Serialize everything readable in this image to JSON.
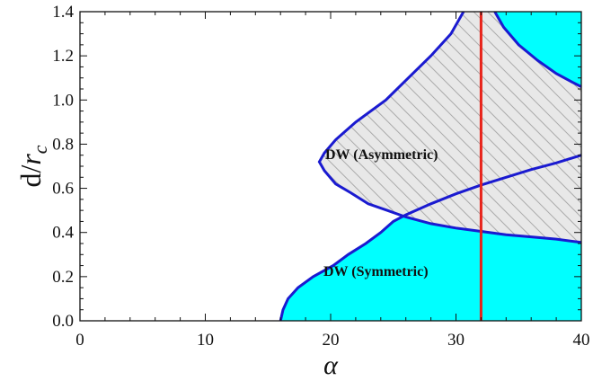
{
  "chart_data": {
    "type": "area",
    "xlim": [
      0,
      40
    ],
    "ylim": [
      0,
      1.4
    ],
    "x_ticks": [
      "0",
      "10",
      "20",
      "30",
      "40"
    ],
    "y_ticks": [
      "0.0",
      "0.2",
      "0.4",
      "0.6",
      "0.8",
      "1.0",
      "1.2",
      "1.4"
    ],
    "xlabel": "α",
    "ylabel_main": "d/",
    "ylabel_var": "r",
    "ylabel_sub": "c",
    "grid": false,
    "colors": {
      "fill": "#00ffff",
      "boundary": "#1a1ad0",
      "hatch": "#aaaaaa",
      "hatch_bg": "#e8e8e8",
      "vertical_line": "#e8231a"
    },
    "regions": [
      {
        "label": "DW (Symmetric)",
        "fill": "cyan",
        "boundary": [
          [
            16.0,
            0.0
          ],
          [
            16.2,
            0.05
          ],
          [
            16.6,
            0.1
          ],
          [
            17.4,
            0.15
          ],
          [
            18.6,
            0.2
          ],
          [
            20.2,
            0.25
          ],
          [
            21.4,
            0.3
          ],
          [
            22.8,
            0.35
          ],
          [
            24.0,
            0.4
          ],
          [
            25.0,
            0.45
          ],
          [
            26.0,
            0.48
          ],
          [
            28.0,
            0.53
          ],
          [
            30.0,
            0.575
          ],
          [
            32.0,
            0.615
          ],
          [
            34.0,
            0.65
          ],
          [
            36.0,
            0.685
          ],
          [
            38.0,
            0.715
          ],
          [
            40.0,
            0.75
          ]
        ]
      },
      {
        "label": "DW (Asymmetric)",
        "fill": "hatched",
        "left_boundary": [
          [
            30.6,
            1.4
          ],
          [
            29.6,
            1.3
          ],
          [
            28.0,
            1.2
          ],
          [
            26.2,
            1.1
          ],
          [
            24.4,
            1.0
          ],
          [
            22.0,
            0.9
          ],
          [
            20.4,
            0.82
          ],
          [
            19.5,
            0.76
          ],
          [
            19.1,
            0.72
          ],
          [
            19.5,
            0.68
          ],
          [
            20.4,
            0.62
          ],
          [
            21.6,
            0.58
          ],
          [
            23.0,
            0.53
          ],
          [
            24.5,
            0.5
          ],
          [
            26.0,
            0.47
          ],
          [
            28.0,
            0.44
          ],
          [
            30.0,
            0.42
          ],
          [
            32.0,
            0.405
          ],
          [
            34.0,
            0.39
          ],
          [
            36.0,
            0.38
          ],
          [
            38.0,
            0.37
          ],
          [
            40.0,
            0.355
          ]
        ]
      },
      {
        "label": "",
        "fill": "cyan",
        "boundary": [
          [
            33.1,
            1.4
          ],
          [
            33.8,
            1.33
          ],
          [
            35.0,
            1.25
          ],
          [
            36.5,
            1.18
          ],
          [
            38.0,
            1.12
          ],
          [
            39.3,
            1.08
          ],
          [
            40.0,
            1.06
          ]
        ]
      }
    ],
    "vertical_line": {
      "x": 32.0,
      "color": "red"
    },
    "annotations": [
      "DW (Asymmetric)",
      "DW (Symmetric)"
    ]
  }
}
